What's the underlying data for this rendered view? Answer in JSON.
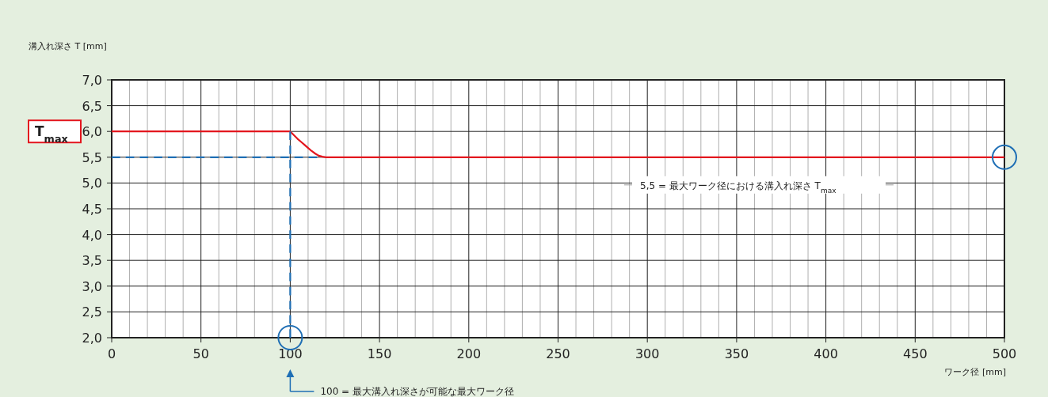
{
  "chart_data": {
    "type": "line",
    "ylabel": "溝入れ深さ T [mm]",
    "xlabel": "ワーク径 [mm]",
    "xlim": [
      0,
      500
    ],
    "xticks": [
      0,
      50,
      100,
      150,
      200,
      250,
      300,
      350,
      400,
      450,
      500
    ],
    "ylim": [
      2.0,
      7.0
    ],
    "yticks": [
      {
        "value": 2.0,
        "label": "2,0"
      },
      {
        "value": 2.5,
        "label": "2,5"
      },
      {
        "value": 3.0,
        "label": "3,0"
      },
      {
        "value": 3.5,
        "label": "3,5"
      },
      {
        "value": 4.0,
        "label": "4,0"
      },
      {
        "value": 4.5,
        "label": "4,5"
      },
      {
        "value": 5.0,
        "label": "5,0"
      },
      {
        "value": 5.5,
        "label": "5,5"
      },
      {
        "value": 6.0,
        "label": "6,0"
      },
      {
        "value": 6.5,
        "label": "6,5"
      },
      {
        "value": 7.0,
        "label": "7,0"
      }
    ],
    "grid": true,
    "series": [
      {
        "color": "#e3161e",
        "line_style": "solid",
        "x": [
          0,
          100,
          102,
          104,
          106,
          108,
          110,
          112,
          114,
          116,
          118,
          120,
          500
        ],
        "values": [
          6.0,
          6.0,
          5.93,
          5.86,
          5.8,
          5.74,
          5.68,
          5.62,
          5.57,
          5.53,
          5.51,
          5.5,
          5.5
        ]
      },
      {
        "color": "#1f6fb5",
        "line_style": "dashed",
        "x": [
          0,
          115
        ],
        "values": [
          5.5,
          5.5
        ]
      },
      {
        "color": "#1f6fb5",
        "line_style": "dashed",
        "x": [
          100,
          100
        ],
        "values": [
          2.0,
          6.0
        ]
      }
    ],
    "annotations": [
      "T$_{max}$",
      "5,5 = 最大ワーク径における溝入れ深さ T$_{max}$",
      "100 = 最大溝入れ深さが可能な最大ワーク径"
    ]
  }
}
